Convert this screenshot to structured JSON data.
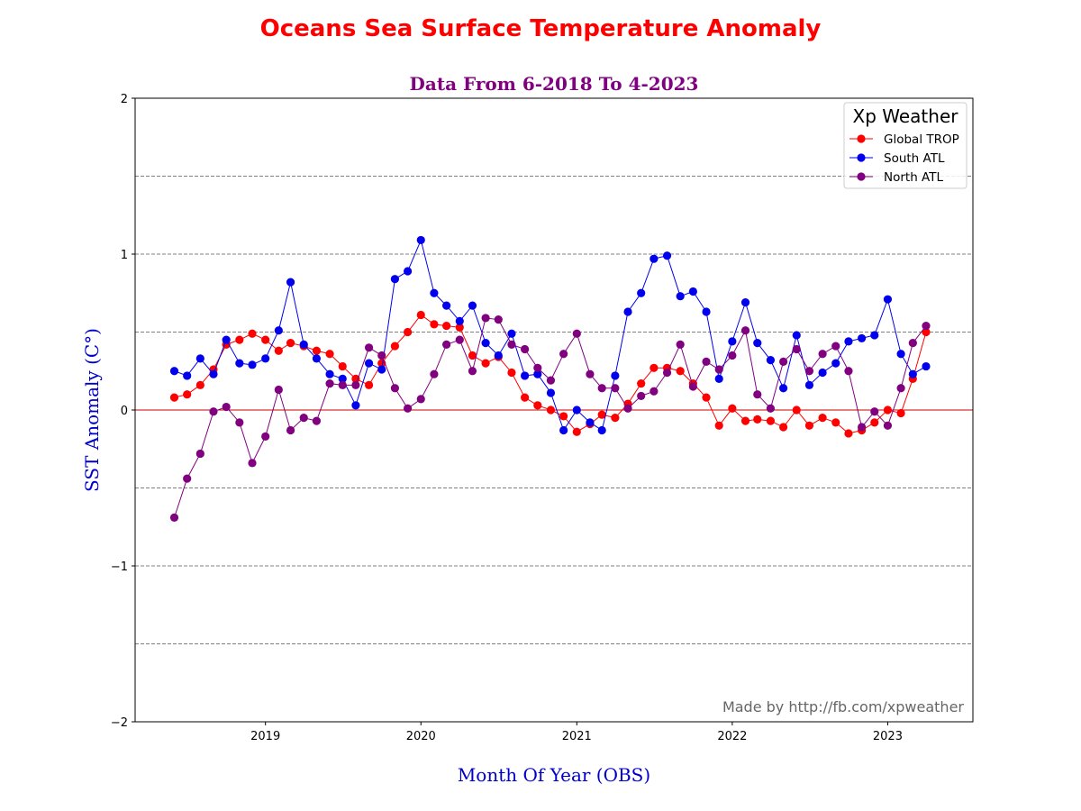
{
  "chart_data": {
    "type": "line",
    "title": "Oceans Sea Surface Temperature Anomaly",
    "subtitle": "Data From 6-2018 To 4-2023",
    "xlabel": "Month Of Year (OBS)",
    "ylabel": "SST Anomaly (C°)",
    "ylim": [
      -2,
      2
    ],
    "xlim": [
      "2018-03-01",
      "2023-07-20"
    ],
    "x_ticks": [
      "2019",
      "2020",
      "2021",
      "2022",
      "2023"
    ],
    "y_ticks": [
      "−2",
      "−1",
      "0",
      "1",
      "2"
    ],
    "grid": "horizontal dashed at ±0.5, ±1, ±1.5",
    "zero_line": true,
    "legend": {
      "title": "Xp Weather",
      "position": "top-right"
    },
    "annotation": "Made by http://fb.com/xpweather",
    "x": [
      "2018-06",
      "2018-07",
      "2018-08",
      "2018-09",
      "2018-10",
      "2018-11",
      "2018-12",
      "2019-01",
      "2019-02",
      "2019-03",
      "2019-04",
      "2019-05",
      "2019-06",
      "2019-07",
      "2019-08",
      "2019-09",
      "2019-10",
      "2019-11",
      "2019-12",
      "2020-01",
      "2020-02",
      "2020-03",
      "2020-04",
      "2020-05",
      "2020-06",
      "2020-07",
      "2020-08",
      "2020-09",
      "2020-10",
      "2020-11",
      "2020-12",
      "2021-01",
      "2021-02",
      "2021-03",
      "2021-04",
      "2021-05",
      "2021-06",
      "2021-07",
      "2021-08",
      "2021-09",
      "2021-10",
      "2021-11",
      "2021-12",
      "2022-01",
      "2022-02",
      "2022-03",
      "2022-04",
      "2022-05",
      "2022-06",
      "2022-07",
      "2022-08",
      "2022-09",
      "2022-10",
      "2022-11",
      "2022-12",
      "2023-01",
      "2023-02",
      "2023-03",
      "2023-04"
    ],
    "series": [
      {
        "name": "Global TROP",
        "color": "#ff0000",
        "values": [
          0.08,
          0.1,
          0.16,
          0.26,
          0.42,
          0.45,
          0.49,
          0.45,
          0.38,
          0.43,
          0.41,
          0.38,
          0.36,
          0.28,
          0.2,
          0.16,
          0.3,
          0.41,
          0.5,
          0.61,
          0.55,
          0.54,
          0.53,
          0.35,
          0.3,
          0.34,
          0.24,
          0.08,
          0.03,
          0.0,
          -0.04,
          -0.14,
          -0.09,
          -0.03,
          -0.05,
          0.04,
          0.17,
          0.27,
          0.27,
          0.25,
          0.17,
          0.08,
          -0.1,
          0.01,
          -0.07,
          -0.06,
          -0.07,
          -0.11,
          0.0,
          -0.1,
          -0.05,
          -0.08,
          -0.15,
          -0.13,
          -0.08,
          0.0,
          -0.02,
          0.2,
          0.5
        ]
      },
      {
        "name": "South ATL",
        "color": "#0000ee",
        "values": [
          0.25,
          0.22,
          0.33,
          0.23,
          0.45,
          0.3,
          0.29,
          0.33,
          0.51,
          0.82,
          0.42,
          0.33,
          0.23,
          0.2,
          0.03,
          0.3,
          0.26,
          0.84,
          0.89,
          1.09,
          0.75,
          0.67,
          0.57,
          0.67,
          0.43,
          0.35,
          0.49,
          0.22,
          0.23,
          0.11,
          -0.13,
          0.0,
          -0.08,
          -0.13,
          0.22,
          0.63,
          0.75,
          0.97,
          0.99,
          0.73,
          0.76,
          0.63,
          0.2,
          0.44,
          0.69,
          0.43,
          0.32,
          0.14,
          0.48,
          0.16,
          0.24,
          0.3,
          0.44,
          0.46,
          0.48,
          0.71,
          0.36,
          0.23,
          0.28
        ]
      },
      {
        "name": "North ATL",
        "color": "#800080",
        "values": [
          -0.69,
          -0.44,
          -0.28,
          -0.01,
          0.02,
          -0.08,
          -0.34,
          -0.17,
          0.13,
          -0.13,
          -0.05,
          -0.07,
          0.17,
          0.16,
          0.16,
          0.4,
          0.35,
          0.14,
          0.01,
          0.07,
          0.23,
          0.42,
          0.45,
          0.25,
          0.59,
          0.58,
          0.42,
          0.39,
          0.27,
          0.19,
          0.36,
          0.49,
          0.23,
          0.14,
          0.14,
          0.01,
          0.09,
          0.12,
          0.24,
          0.42,
          0.15,
          0.31,
          0.26,
          0.35,
          0.51,
          0.1,
          0.01,
          0.31,
          0.39,
          0.25,
          0.36,
          0.41,
          0.25,
          -0.11,
          -0.01,
          -0.1,
          0.14,
          0.43,
          0.54
        ]
      }
    ]
  }
}
